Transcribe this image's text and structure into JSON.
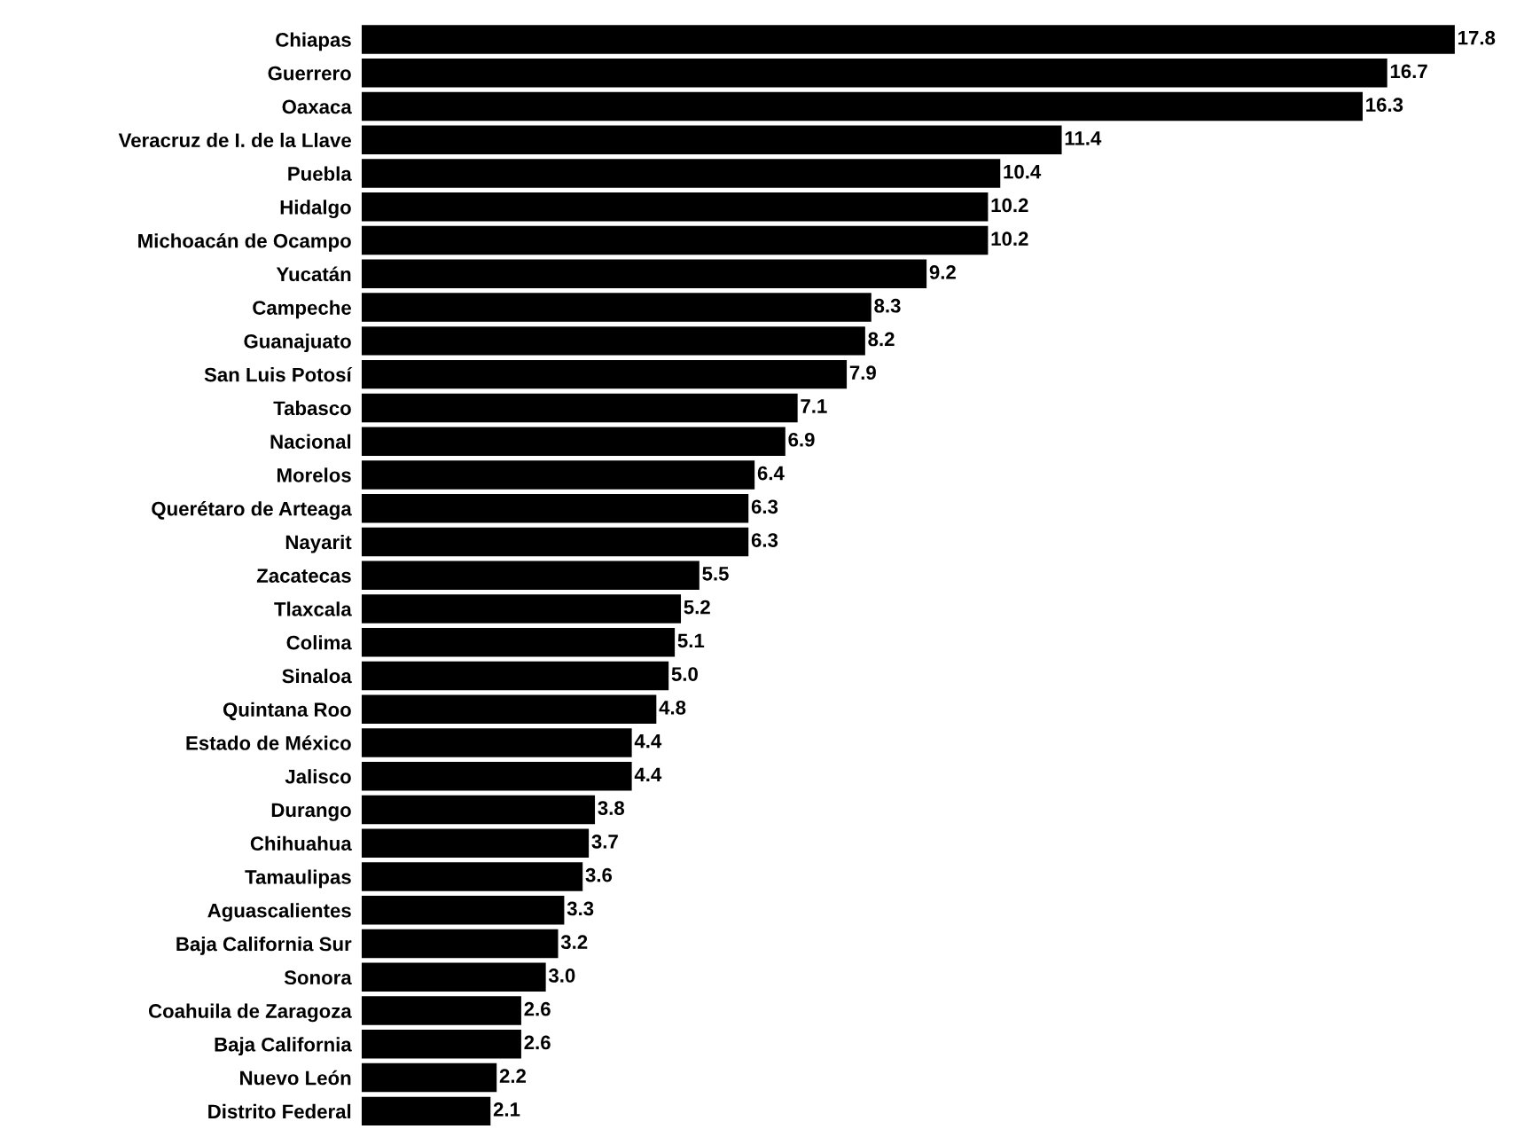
{
  "chart_data": {
    "type": "bar",
    "orientation": "horizontal",
    "value_labels": [
      "17.8",
      "16.7",
      "16.3",
      "11.4",
      "10.4",
      "10.2",
      "10.2",
      "9.2",
      "8.3",
      "8.2",
      "7.9",
      "7.1",
      "6.9",
      "6.4",
      "6.3",
      "6.3",
      "5.5",
      "5.2",
      "5.1",
      "5.0",
      "4.8",
      "4.4",
      "4.4",
      "3.8",
      "3.7",
      "3.6",
      "3.3",
      "3.2",
      "3.0",
      "2.6",
      "2.6",
      "2.2",
      "2.1"
    ],
    "color": "#000000",
    "categories": [
      "Chiapas",
      "Guerrero",
      "Oaxaca",
      "Veracruz de I. de la Llave",
      "Puebla",
      "Hidalgo",
      "Michoacán de Ocampo",
      "Yucatán",
      "Campeche",
      "Guanajuato",
      "San Luis Potosí",
      "Tabasco",
      "Nacional",
      "Morelos",
      "Querétaro de Arteaga",
      "Nayarit",
      "Zacatecas",
      "Tlaxcala",
      "Colima",
      "Sinaloa",
      "Quintana Roo",
      "Estado de México",
      "Jalisco",
      "Durango",
      "Chihuahua",
      "Tamaulipas",
      "Aguascalientes",
      "Baja California Sur",
      "Sonora",
      "Coahuila de Zaragoza",
      "Baja California",
      "Nuevo León",
      "Distrito Federal"
    ],
    "values": [
      17.8,
      16.7,
      16.3,
      11.4,
      10.4,
      10.2,
      10.2,
      9.2,
      8.3,
      8.2,
      7.9,
      7.1,
      6.9,
      6.4,
      6.3,
      6.3,
      5.5,
      5.2,
      5.1,
      5.0,
      4.8,
      4.4,
      4.4,
      3.8,
      3.7,
      3.6,
      3.3,
      3.2,
      3.0,
      2.6,
      2.6,
      2.2,
      2.1
    ]
  }
}
